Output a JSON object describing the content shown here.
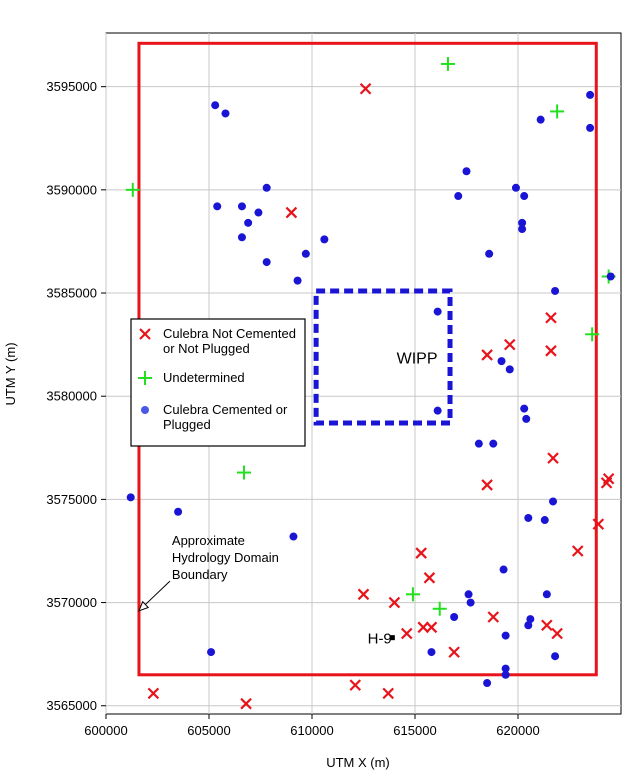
{
  "chart_data": {
    "type": "scatter",
    "title": "",
    "xlabel": "UTM X (m)",
    "ylabel": "UTM Y (m)",
    "xlim": [
      600000,
      625000
    ],
    "ylim": [
      3564600,
      3597600
    ],
    "x_ticks": [
      600000,
      605000,
      610000,
      615000,
      620000
    ],
    "y_ticks": [
      3565000,
      3570000,
      3575000,
      3580000,
      3585000,
      3590000,
      3595000
    ],
    "x_tick_labels": [
      "600000",
      "605000",
      "610000",
      "615000",
      "620000"
    ],
    "y_tick_labels": [
      "3565000",
      "3570000",
      "3575000",
      "3580000",
      "3585000",
      "3590000",
      "3595000"
    ],
    "grid": true,
    "legend_position": "middle-left",
    "series": [
      {
        "name": "Culebra Not Cemented or Not Plugged",
        "marker": "x",
        "color": "#e8141b",
        "points": [
          [
            612600,
            3594900
          ],
          [
            609000,
            3588900
          ],
          [
            621600,
            3583800
          ],
          [
            619600,
            3582500
          ],
          [
            618500,
            3582000
          ],
          [
            621600,
            3582200
          ],
          [
            621700,
            3577000
          ],
          [
            618500,
            3575700
          ],
          [
            624400,
            3576000
          ],
          [
            624300,
            3575800
          ],
          [
            623900,
            3573800
          ],
          [
            622900,
            3572500
          ],
          [
            615300,
            3572400
          ],
          [
            615700,
            3571200
          ],
          [
            612500,
            3570400
          ],
          [
            614000,
            3570000
          ],
          [
            615400,
            3568800
          ],
          [
            615800,
            3568800
          ],
          [
            614600,
            3568500
          ],
          [
            618800,
            3569300
          ],
          [
            621400,
            3568900
          ],
          [
            621900,
            3568500
          ],
          [
            616900,
            3567600
          ],
          [
            612100,
            3566000
          ],
          [
            613700,
            3565600
          ],
          [
            602300,
            3565600
          ],
          [
            606800,
            3565100
          ]
        ]
      },
      {
        "name": "Undetermined",
        "marker": "+",
        "color": "#22e01e",
        "points": [
          [
            616600,
            3596100
          ],
          [
            621900,
            3593800
          ],
          [
            601300,
            3590000
          ],
          [
            624400,
            3585800
          ],
          [
            623600,
            3583000
          ],
          [
            606700,
            3576300
          ],
          [
            614900,
            3570400
          ],
          [
            616200,
            3569700
          ]
        ]
      },
      {
        "name": "Culebra Cemented or Plugged",
        "marker": "o",
        "color": "#1a14d4",
        "points": [
          [
            605300,
            3594100
          ],
          [
            605800,
            3593700
          ],
          [
            623500,
            3594600
          ],
          [
            621100,
            3593400
          ],
          [
            623500,
            3593000
          ],
          [
            617500,
            3590900
          ],
          [
            605400,
            3589200
          ],
          [
            606600,
            3589200
          ],
          [
            607800,
            3590100
          ],
          [
            619900,
            3590100
          ],
          [
            620300,
            3589700
          ],
          [
            617100,
            3589700
          ],
          [
            607400,
            3588900
          ],
          [
            606900,
            3588400
          ],
          [
            606600,
            3587700
          ],
          [
            610600,
            3587600
          ],
          [
            620200,
            3588400
          ],
          [
            620200,
            3588100
          ],
          [
            609700,
            3586900
          ],
          [
            618600,
            3586900
          ],
          [
            607800,
            3586500
          ],
          [
            609300,
            3585600
          ],
          [
            624500,
            3585800
          ],
          [
            621800,
            3585100
          ],
          [
            616100,
            3584100
          ],
          [
            619200,
            3581700
          ],
          [
            619600,
            3581300
          ],
          [
            616100,
            3579300
          ],
          [
            620300,
            3579400
          ],
          [
            620400,
            3578900
          ],
          [
            618100,
            3577700
          ],
          [
            618800,
            3577700
          ],
          [
            601200,
            3575100
          ],
          [
            603500,
            3574400
          ],
          [
            621700,
            3574900
          ],
          [
            620500,
            3574100
          ],
          [
            621300,
            3574000
          ],
          [
            609100,
            3573200
          ],
          [
            619300,
            3571600
          ],
          [
            617600,
            3570400
          ],
          [
            617700,
            3570000
          ],
          [
            621400,
            3570400
          ],
          [
            616900,
            3569300
          ],
          [
            620600,
            3569200
          ],
          [
            620500,
            3568900
          ],
          [
            619400,
            3568400
          ],
          [
            605100,
            3567600
          ],
          [
            615800,
            3567600
          ],
          [
            621800,
            3567400
          ],
          [
            619400,
            3566800
          ],
          [
            619400,
            3566500
          ],
          [
            618500,
            3566100
          ]
        ]
      }
    ],
    "domain_boundary": {
      "x0": 601600,
      "x1": 623800,
      "y0": 3566500,
      "y1": 3597100
    },
    "wipp_boundary": {
      "x0": 610200,
      "x1": 616700,
      "y0": 3578700,
      "y1": 3585100
    },
    "annotations": [
      {
        "text": "WIPP",
        "x": 615100,
        "y": 3581800
      },
      {
        "text": "H-9",
        "x": 612700,
        "y": 3568200
      },
      {
        "text_lines": [
          "Approximate",
          "Hydrology Domain",
          "Boundary"
        ],
        "x": 603200,
        "y": 3572200,
        "arrow_to": [
          601600,
          3569600
        ]
      }
    ],
    "h9_marker": {
      "x": 613900,
      "y": 3568300
    },
    "legend_entries": [
      {
        "lines": [
          "Culebra Not Cemented",
          "or Not Plugged"
        ],
        "marker": "x",
        "color": "#e8141b"
      },
      {
        "lines": [
          "Undetermined"
        ],
        "marker": "+",
        "color": "#22e01e"
      },
      {
        "lines": [
          "Culebra Cemented or",
          "Plugged"
        ],
        "marker": "o",
        "color": "#4a58e8"
      }
    ]
  }
}
